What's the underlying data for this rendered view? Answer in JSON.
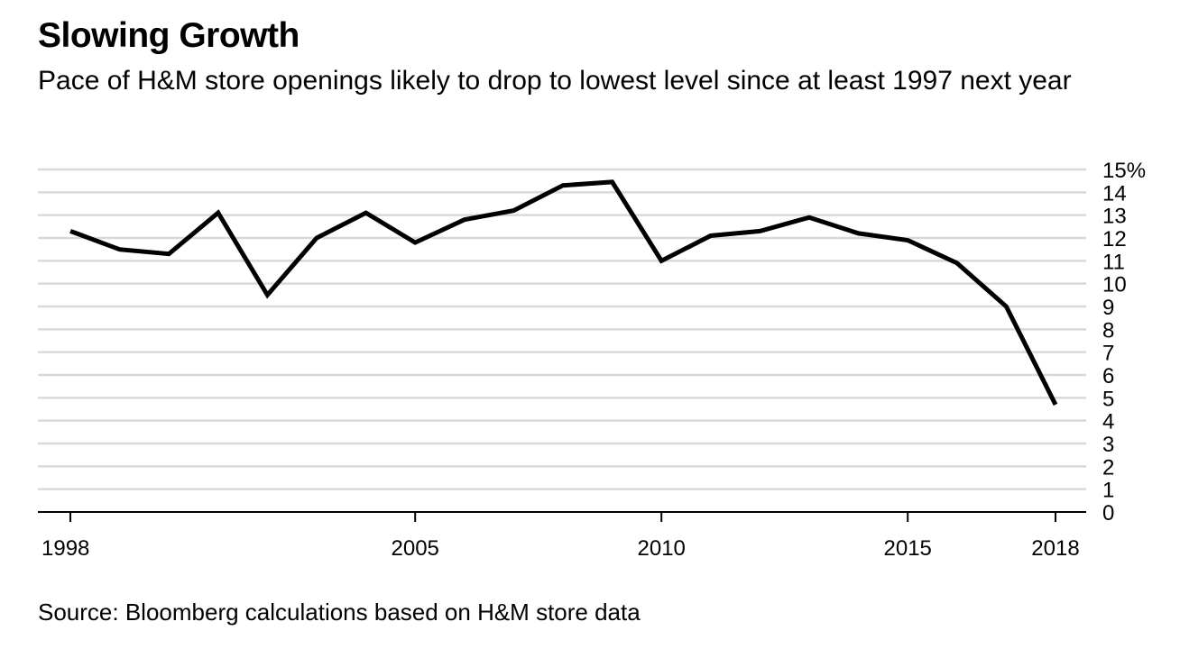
{
  "title": "Slowing Growth",
  "subtitle": "Pace of H&M store openings likely to drop to lowest level since at least 1997 next year",
  "source": "Source: Bloomberg calculations based on H&M store data",
  "colors": {
    "line": "#000000",
    "grid": "#d9d9d9",
    "axis": "#000000",
    "text": "#000000"
  },
  "chart_data": {
    "type": "line",
    "title": "Slowing Growth",
    "xlabel": "",
    "ylabel": "",
    "xlim": [
      1998,
      2018
    ],
    "ylim": [
      0,
      15
    ],
    "y_ticks": [
      0,
      1,
      2,
      3,
      4,
      5,
      6,
      7,
      8,
      9,
      10,
      11,
      12,
      13,
      14,
      15
    ],
    "y_tick_labels": [
      "0",
      "1",
      "2",
      "3",
      "4",
      "5",
      "6",
      "7",
      "8",
      "9",
      "10",
      "11",
      "12",
      "13",
      "14",
      "15%"
    ],
    "x_ticks": [
      1998,
      2005,
      2010,
      2015,
      2018
    ],
    "x_tick_labels": [
      "1998",
      "2005",
      "2010",
      "2015",
      "2018"
    ],
    "y_axis_position": "right",
    "grid": true,
    "legend": "none",
    "series": [
      {
        "x": [
          1998,
          1999,
          2000,
          2001,
          2002,
          2003,
          2004,
          2005,
          2006,
          2007,
          2008,
          2009,
          2010,
          2011,
          2012,
          2013,
          2014,
          2015,
          2016,
          2017,
          2018
        ],
        "values": [
          12.3,
          11.5,
          11.3,
          13.1,
          9.5,
          12.0,
          13.1,
          11.8,
          12.8,
          13.2,
          14.3,
          14.45,
          11.0,
          12.1,
          12.3,
          12.9,
          12.2,
          11.9,
          10.9,
          9.0,
          4.7
        ]
      }
    ]
  }
}
